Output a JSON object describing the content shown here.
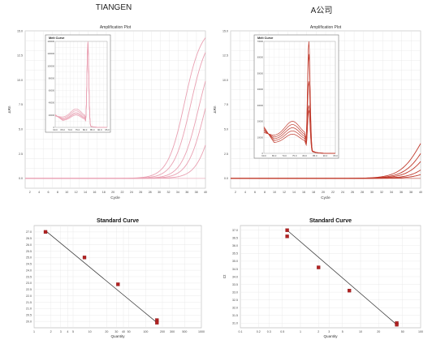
{
  "headings": {
    "left": "TIANGEN",
    "right": "A公司"
  },
  "colors": {
    "tiangen_curve": "#e9a0b2",
    "a_curve": "#c0392b",
    "marker": "#b22222",
    "fit_line": "#333333",
    "melt_peak": "#9b59b6"
  },
  "chart_data": [
    {
      "id": "tiangen-amplification",
      "type": "line",
      "title": "Amplification Plot",
      "xlabel": "Cycle",
      "ylabel": "ΔRn",
      "xlim": [
        1,
        40
      ],
      "ylim": [
        -1,
        15
      ],
      "xticks": [
        "2",
        "4",
        "6",
        "8",
        "10",
        "12",
        "14",
        "16",
        "18",
        "20",
        "22",
        "24",
        "26",
        "28",
        "30",
        "32",
        "34",
        "36",
        "38",
        "40"
      ],
      "yticks": [
        "0.0",
        "2.5",
        "5.0",
        "7.5",
        "10.0",
        "12.5",
        "15.0"
      ],
      "series": [
        {
          "ct": 31.5,
          "plateau": 15.5,
          "k": 0.55
        },
        {
          "ct": 32.8,
          "plateau": 15.0,
          "k": 0.55
        },
        {
          "ct": 34.5,
          "plateau": 14.2,
          "k": 0.55
        },
        {
          "ct": 35.8,
          "plateau": 13.5,
          "k": 0.55
        },
        {
          "ct": 37.8,
          "plateau": 12.5,
          "k": 0.55
        }
      ],
      "inset": {
        "title": "Melt Curve",
        "xticks": [
          "60.0",
          "65.0",
          "70.0",
          "75.0",
          "80.0",
          "85.0",
          "90.0",
          "95.0"
        ],
        "yticks": [
          "0",
          "20000",
          "40000",
          "60000",
          "80000",
          "100000",
          "120000",
          "140000"
        ],
        "xlim": [
          60,
          95
        ],
        "ylim": [
          0,
          140000
        ],
        "peak_temp": 82,
        "peak_values": [
          140000,
          138000,
          136000,
          134000,
          132000
        ],
        "shoulder_values": [
          30000,
          27000,
          24000,
          22000,
          20000
        ]
      }
    },
    {
      "id": "a-amplification",
      "type": "line",
      "title": "Amplification Plot",
      "xlabel": "Cycle",
      "ylabel": "ΔRn",
      "xlim": [
        1,
        40
      ],
      "ylim": [
        -1,
        15
      ],
      "xticks": [
        "2",
        "4",
        "6",
        "8",
        "10",
        "12",
        "14",
        "16",
        "18",
        "20",
        "22",
        "24",
        "26",
        "28",
        "30",
        "32",
        "34",
        "36",
        "38",
        "40"
      ],
      "yticks": [
        "0.0",
        "2.5",
        "5.0",
        "7.5",
        "10.0",
        "12.5",
        "15.0"
      ],
      "series": [
        {
          "ct": 36.5,
          "plateau": 8.0,
          "k": 0.45
        },
        {
          "ct": 37.5,
          "plateau": 7.5,
          "k": 0.45
        },
        {
          "ct": 38.5,
          "plateau": 7.0,
          "k": 0.45
        },
        {
          "ct": 40.0,
          "plateau": 6.0,
          "k": 0.45
        },
        {
          "ct": 41.5,
          "plateau": 5.0,
          "k": 0.45
        }
      ],
      "inset": {
        "title": "Melt Curve",
        "xticks": [
          "60.0",
          "65.0",
          "70.0",
          "75.0",
          "80.0",
          "85.0",
          "90.0",
          "95.0"
        ],
        "yticks": [
          "0",
          "10000",
          "20000",
          "30000",
          "40000",
          "50000",
          "60000",
          "70000"
        ],
        "xlim": [
          60,
          95
        ],
        "ylim": [
          0,
          70000
        ],
        "peak_temp": 82,
        "peak_values": [
          70000,
          62000,
          45000,
          30000,
          27000
        ],
        "shoulder_values": [
          20000,
          18000,
          16000,
          14000,
          12000
        ]
      }
    },
    {
      "id": "tiangen-standard",
      "type": "scatter",
      "title": "Standard Curve",
      "xlabel": "Quantity",
      "ylabel": "",
      "xscale": "log",
      "xticks": [
        "1",
        "2",
        "3",
        "4",
        "5",
        "10",
        "20",
        "30",
        "40",
        "50",
        "100",
        "200",
        "300",
        "500",
        "1000"
      ],
      "yticks": [
        "27.0",
        "26.5",
        "26.0",
        "25.5",
        "25.0",
        "24.5",
        "24.0",
        "23.5",
        "23.0",
        "22.5",
        "22.0",
        "21.5",
        "21.0",
        "20.5",
        "20.0"
      ],
      "xlim": [
        1,
        1000
      ],
      "ylim": [
        19.5,
        27.5
      ],
      "points": [
        {
          "x": 1.6,
          "y": 27.0
        },
        {
          "x": 8,
          "y": 25.0
        },
        {
          "x": 32,
          "y": 22.9
        },
        {
          "x": 160,
          "y": 20.1
        },
        {
          "x": 160,
          "y": 19.9
        }
      ],
      "fit": {
        "x": [
          1.6,
          160
        ],
        "y": [
          27.1,
          19.9
        ]
      }
    },
    {
      "id": "a-standard",
      "type": "scatter",
      "title": "Standard Curve",
      "xlabel": "Quantity",
      "ylabel": "Ct",
      "xscale": "log",
      "xticks": [
        "0.1",
        "0.2",
        "0.3",
        "0.5",
        "1",
        "2",
        "3",
        "5",
        "10",
        "20",
        "50",
        "100"
      ],
      "yticks": [
        "37.0",
        "36.5",
        "36.0",
        "35.5",
        "35.0",
        "34.5",
        "34.0",
        "33.5",
        "33.0",
        "32.5",
        "32.0",
        "31.5",
        "31.0"
      ],
      "xlim": [
        0.1,
        100
      ],
      "ylim": [
        30.7,
        37.3
      ],
      "points": [
        {
          "x": 0.6,
          "y": 37.0
        },
        {
          "x": 0.6,
          "y": 36.6
        },
        {
          "x": 2.0,
          "y": 34.6
        },
        {
          "x": 6.5,
          "y": 33.1
        },
        {
          "x": 40,
          "y": 31.0
        },
        {
          "x": 40,
          "y": 30.9
        }
      ],
      "fit": {
        "x": [
          0.6,
          40
        ],
        "y": [
          37.0,
          30.9
        ]
      }
    }
  ]
}
